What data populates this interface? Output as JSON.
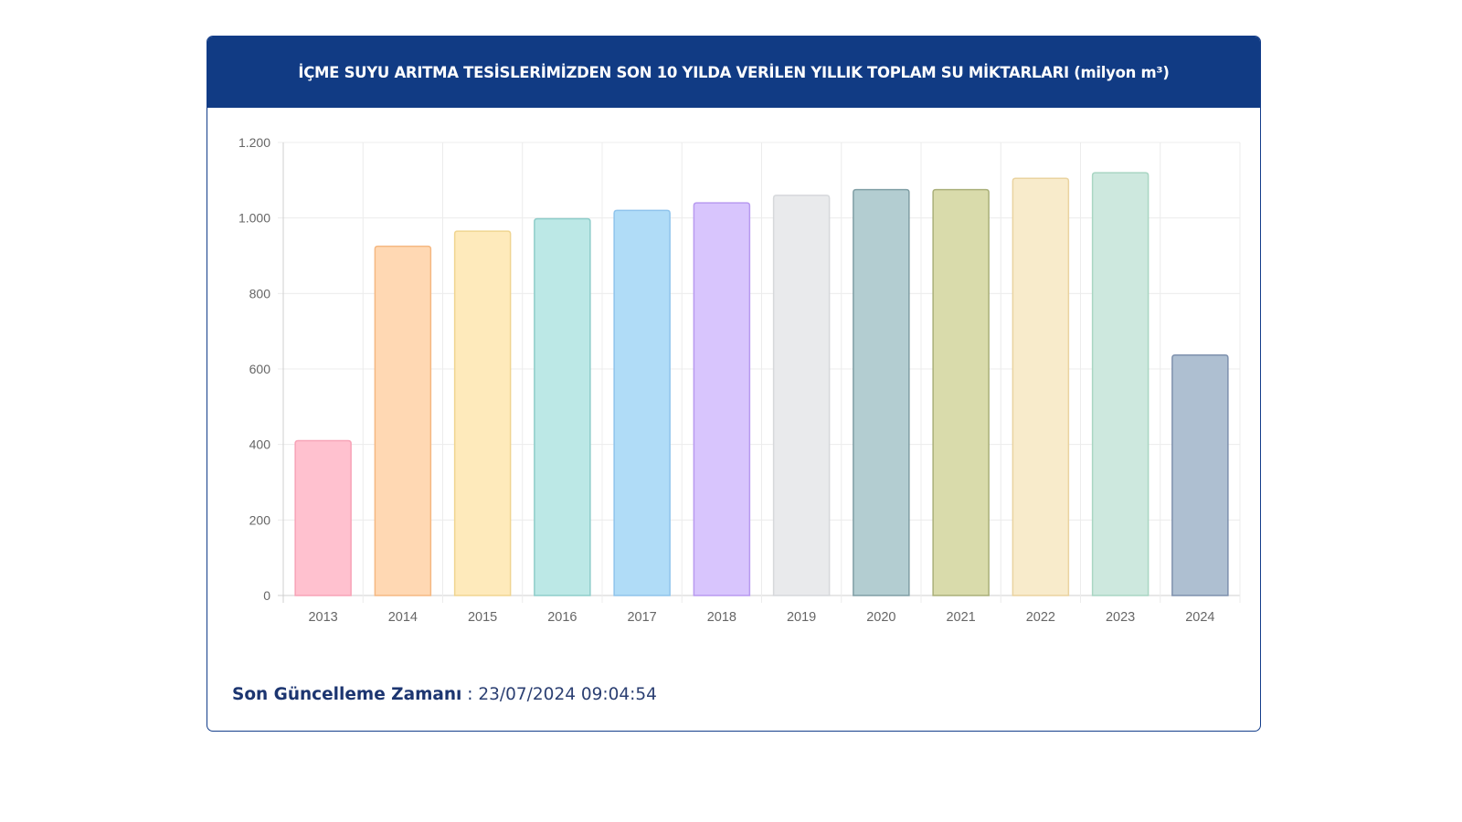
{
  "header": {
    "title": "İÇME SUYU ARITMA TESİSLERİMİZDEN SON 10 YILDA VERİLEN YILLIK TOPLAM SU MİKTARLARI (milyon m³)"
  },
  "footer": {
    "label": "Son Güncelleme Zamanı",
    "separator": " : ",
    "value": "23/07/2024 09:04:54"
  },
  "colors": {
    "header_bg": "#113b84",
    "border": "#133d8a"
  },
  "chart_data": {
    "type": "bar",
    "title": "İÇME SUYU ARITMA TESİSLERİMİZDEN SON 10 YILDA VERİLEN YILLIK TOPLAM SU MİKTARLARI (milyon m³)",
    "xlabel": "",
    "ylabel": "",
    "categories": [
      "2013",
      "2014",
      "2015",
      "2016",
      "2017",
      "2018",
      "2019",
      "2020",
      "2021",
      "2022",
      "2023",
      "2024"
    ],
    "values": [
      410,
      925,
      965,
      998,
      1020,
      1040,
      1060,
      1075,
      1075,
      1105,
      1120,
      637
    ],
    "ylim": [
      0,
      1200
    ],
    "yticks": [
      0,
      200,
      400,
      600,
      800,
      1000,
      1200
    ],
    "ytick_labels": [
      "0",
      "200",
      "400",
      "600",
      "800",
      "1.000",
      "1.200"
    ],
    "grid": true,
    "bar_fill_colors": [
      "#ffc1cf",
      "#ffd8b3",
      "#feeabb",
      "#bce8e6",
      "#b0dcf7",
      "#d8c5fd",
      "#e9eaec",
      "#b3cdd1",
      "#d9dbab",
      "#f8ebcb",
      "#cde8de",
      "#aebfd1"
    ],
    "bar_stroke_colors": [
      "#f7a3b7",
      "#f5b882",
      "#f0d591",
      "#8ecdca",
      "#8fc4ec",
      "#b89af0",
      "#d6d8db",
      "#809fa5",
      "#aab07a",
      "#ead3a0",
      "#a9d6c3",
      "#7e91ad"
    ]
  }
}
